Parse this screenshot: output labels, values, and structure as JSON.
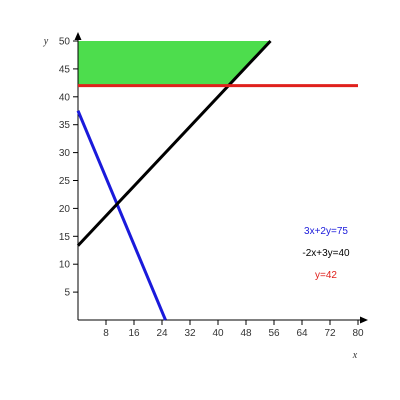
{
  "chart_data": {
    "type": "line",
    "xlabel": "x",
    "ylabel": "y",
    "xlim": [
      0,
      80
    ],
    "ylim": [
      0,
      50
    ],
    "x_ticks": [
      8,
      16,
      24,
      32,
      40,
      48,
      56,
      64,
      72,
      80
    ],
    "y_ticks": [
      5,
      10,
      15,
      20,
      25,
      30,
      35,
      40,
      45,
      50
    ],
    "grid": false,
    "series": [
      {
        "name": "3x+2y=75",
        "color": "#1a1adb",
        "points": [
          [
            0,
            37.5
          ],
          [
            25,
            0
          ]
        ]
      },
      {
        "name": "-2x+3y=40",
        "color": "#000000",
        "points": [
          [
            0,
            13.33
          ],
          [
            55,
            50
          ]
        ]
      },
      {
        "name": "y=42",
        "color": "#e0201c",
        "points": [
          [
            0,
            42
          ],
          [
            80,
            42
          ]
        ]
      }
    ],
    "shaded_region": {
      "color": "#4ddd4d",
      "points": [
        [
          0,
          42
        ],
        [
          43,
          42
        ],
        [
          55,
          50
        ],
        [
          0,
          50
        ]
      ]
    },
    "legend_position": "right-middle"
  }
}
